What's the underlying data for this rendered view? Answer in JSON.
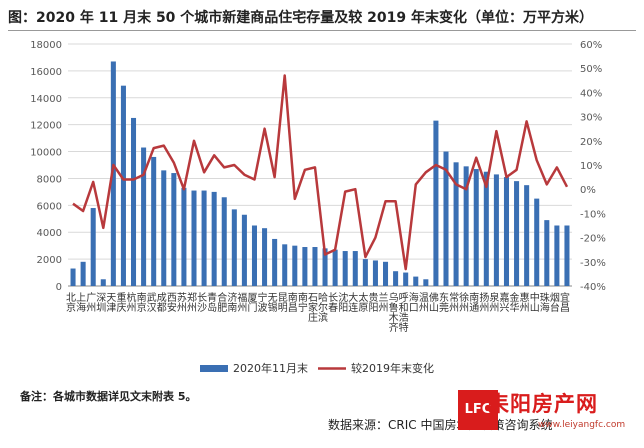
{
  "title": "图：2020 年 11 月末 50 个城市新建商品住宅存量及较 2019 年末变化（单位：万平方米）",
  "note": "备注：各城市数据详见文末附表 5。",
  "source": "数据来源：CRIC 中国房地产决策咨询系统",
  "watermark": {
    "text": "耒阳房产网",
    "badge": "LFC",
    "url": "www.leiyangfc.com"
  },
  "colors": {
    "bar": "#3a6fb3",
    "line": "#b8393c",
    "grid": "#d9d9d9",
    "axis": "#595959"
  },
  "chart_data": {
    "type": "bar",
    "categories": [
      "北京",
      "上海",
      "广州",
      "深圳",
      "天津",
      "重庆",
      "杭州",
      "南京",
      "武汉",
      "成都",
      "西安",
      "苏州",
      "郑州",
      "长沙",
      "青岛",
      "合肥",
      "济南",
      "福州",
      "厦门",
      "宁波",
      "无锡",
      "昆明",
      "南昌",
      "南宁",
      "石家庄",
      "哈尔滨",
      "长春",
      "沈阳",
      "大连",
      "太原",
      "贵阳",
      "兰州",
      "乌鲁木齐",
      "呼和浩特",
      "海口",
      "温州",
      "佛山",
      "东莞",
      "常州",
      "徐州",
      "南通",
      "扬州",
      "泉州",
      "嘉兴",
      "金华",
      "惠州",
      "中山",
      "珠海",
      "烟台",
      "宜昌"
    ],
    "series": [
      {
        "name": "2020年11月末",
        "type": "bar",
        "axis": "left",
        "values": [
          1300,
          1800,
          5800,
          500,
          16700,
          14900,
          12500,
          10300,
          9600,
          8600,
          8400,
          7300,
          7100,
          7100,
          7000,
          6600,
          5700,
          5300,
          4500,
          4300,
          3500,
          3100,
          3000,
          2900,
          2900,
          2800,
          2700,
          2600,
          2600,
          2000,
          1900,
          1800,
          1100,
          1000,
          700,
          500,
          12300,
          10000,
          9200,
          8900,
          8700,
          8500,
          8300,
          8100,
          7800,
          7500,
          6500,
          4900,
          4500,
          4500
        ]
      },
      {
        "name": "较2019年末变化",
        "type": "line",
        "axis": "right",
        "values": [
          -6,
          -9,
          3,
          -16,
          10,
          4,
          4,
          6,
          17,
          18,
          11,
          0,
          20,
          7,
          14,
          9,
          10,
          6,
          4,
          25,
          5,
          47,
          -4,
          8,
          9,
          -27,
          -25,
          -1,
          0,
          -28,
          -20,
          -5,
          -5,
          -33,
          2,
          7,
          10,
          8,
          2,
          0,
          13,
          1,
          24,
          5,
          8,
          28,
          12,
          2,
          9,
          1
        ]
      }
    ],
    "ylim_left": [
      0,
      18000
    ],
    "yticks_left": [
      "0",
      "2000",
      "4000",
      "6000",
      "8000",
      "10000",
      "12000",
      "14000",
      "16000",
      "18000"
    ],
    "ylim_right": [
      -40,
      60
    ],
    "yticks_right": [
      "-40%",
      "-30%",
      "-20%",
      "-10%",
      "0%",
      "10%",
      "20%",
      "30%",
      "40%",
      "50%",
      "60%"
    ],
    "legend": [
      "2020年11月末",
      "较2019年末变化"
    ],
    "legend_position": "bottom",
    "grid": true
  }
}
